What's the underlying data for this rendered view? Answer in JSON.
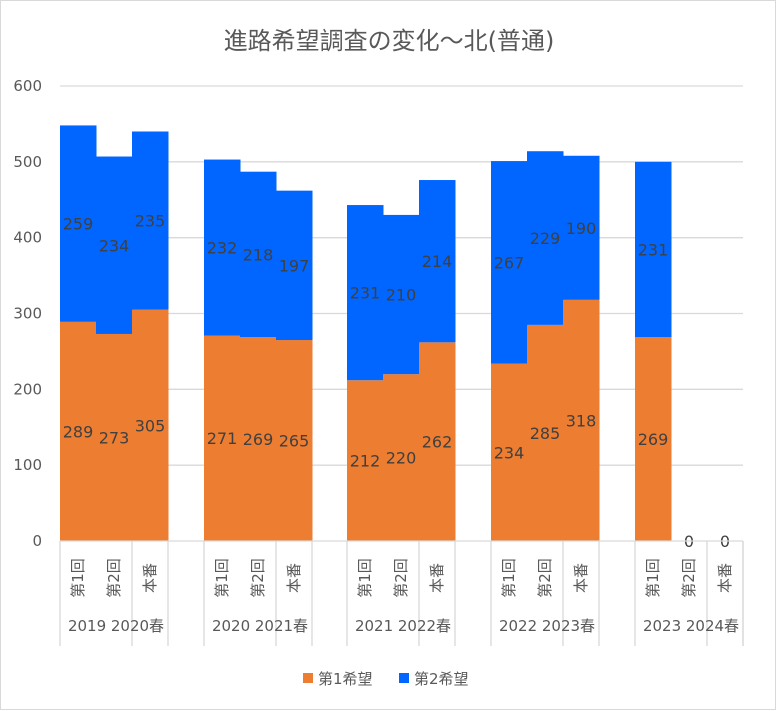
{
  "chart_data": {
    "type": "bar",
    "stacked": true,
    "title": "進路希望調査の変化～北(普通)",
    "xlabel": "",
    "ylabel": "",
    "ylim": [
      0,
      600
    ],
    "yticks": [
      0,
      100,
      200,
      300,
      400,
      500,
      600
    ],
    "grid": true,
    "legend_position": "bottom",
    "groups": [
      {
        "label": "2019 2020春",
        "categories": [
          "第1回",
          "第2回",
          "本番"
        ]
      },
      {
        "label": "2020 2021春",
        "categories": [
          "第1回",
          "第2回",
          "本番"
        ]
      },
      {
        "label": "2021 2022春",
        "categories": [
          "第1回",
          "第2回",
          "本番"
        ]
      },
      {
        "label": "2022 2023春",
        "categories": [
          "第1回",
          "第2回",
          "本番"
        ]
      },
      {
        "label": "2023 2024春",
        "categories": [
          "第1回",
          "第2回",
          "本番"
        ]
      }
    ],
    "series": [
      {
        "name": "第1希望",
        "color": "#ed7d31",
        "values": [
          [
            289,
            273,
            305
          ],
          [
            271,
            269,
            265
          ],
          [
            212,
            220,
            262
          ],
          [
            234,
            285,
            318
          ],
          [
            269,
            0,
            0
          ]
        ]
      },
      {
        "name": "第2希望",
        "color": "#0066ff",
        "values": [
          [
            259,
            234,
            235
          ],
          [
            232,
            218,
            197
          ],
          [
            231,
            210,
            214
          ],
          [
            267,
            229,
            190
          ],
          [
            231,
            null,
            null
          ]
        ]
      }
    ],
    "zero_labels": [
      [
        4,
        1,
        "0"
      ],
      [
        4,
        2,
        "0"
      ]
    ]
  },
  "colors": {
    "gridline": "#d9d9d9",
    "axis_text": "#595959",
    "data_label": "#404040"
  }
}
